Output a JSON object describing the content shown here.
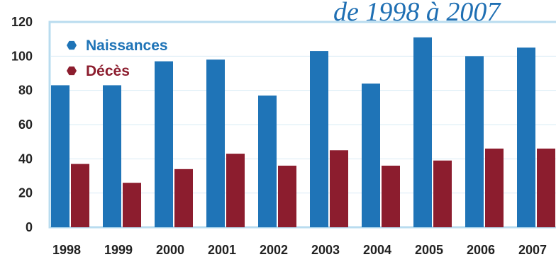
{
  "chart_data": {
    "type": "bar",
    "title": "de 1998 à 2007",
    "categories": [
      "1998",
      "1999",
      "2000",
      "2001",
      "2002",
      "2003",
      "2004",
      "2005",
      "2006",
      "2007"
    ],
    "series": [
      {
        "name": "Naissances",
        "color": "#1f74b7",
        "values": [
          83,
          83,
          97,
          98,
          77,
          103,
          84,
          111,
          100,
          105
        ]
      },
      {
        "name": "Décès",
        "color": "#8c1d2e",
        "values": [
          37,
          26,
          34,
          43,
          36,
          45,
          36,
          39,
          46,
          46
        ]
      }
    ],
    "ylim": [
      0,
      120
    ],
    "yticks": [
      "0",
      "20",
      "40",
      "60",
      "80",
      "100",
      "120"
    ],
    "grid": true,
    "legend_position": "top-left",
    "colors": {
      "frame": "#b9dcef",
      "gridline": "#d9ecf6"
    }
  }
}
